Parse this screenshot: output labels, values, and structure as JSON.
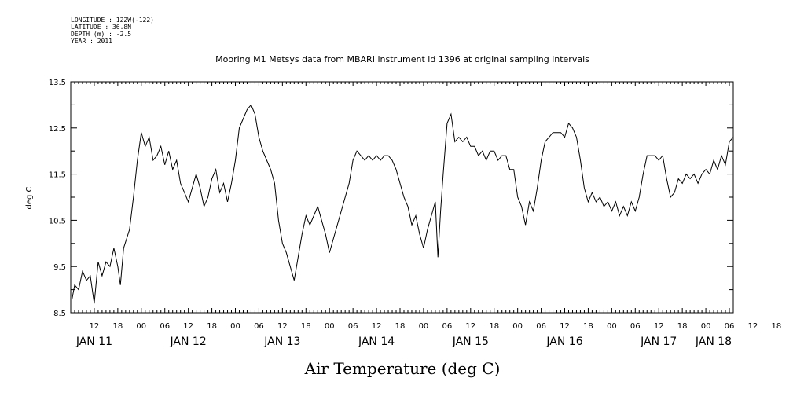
{
  "header": {
    "lines": [
      "LONGITUDE : 122W(-122)",
      "LATITUDE : 36.8N",
      "DEPTH (m) : -2.5",
      "YEAR : 2011"
    ]
  },
  "chart_data": {
    "type": "line",
    "title": "Mooring M1 Metsys data from MBARI instrument id 1396 at original sampling intervals",
    "bottom_title": "Air Temperature (deg C)",
    "ylabel": "deg C",
    "xlabel": "",
    "ylim": [
      8.5,
      13.5
    ],
    "yticks": [
      "8.5",
      "9.5",
      "10.5",
      "11.5",
      "12.5",
      "13.5"
    ],
    "xlim": [
      "2011-01-11T06:00",
      "2011-01-18T07:00"
    ],
    "hour_tick_labels": [
      "12",
      "18",
      "00",
      "06",
      "12",
      "18",
      "00",
      "06",
      "12",
      "18",
      "00",
      "06",
      "12",
      "18",
      "00",
      "06",
      "12",
      "18",
      "00",
      "06",
      "12",
      "18",
      "00",
      "06",
      "12",
      "18",
      "00",
      "06",
      "12",
      "18",
      "00",
      "06"
    ],
    "day_labels": [
      "JAN 11",
      "JAN 12",
      "JAN 13",
      "JAN 14",
      "JAN 15",
      "JAN 16",
      "JAN 17",
      "JAN 18"
    ],
    "grid": false,
    "series": [
      {
        "color": "#000000",
        "points": [
          [
            "2011-01-11T06:20",
            8.8
          ],
          [
            "2011-01-11T07:00",
            9.1
          ],
          [
            "2011-01-11T08:00",
            9.0
          ],
          [
            "2011-01-11T09:00",
            9.4
          ],
          [
            "2011-01-11T10:00",
            9.2
          ],
          [
            "2011-01-11T11:00",
            9.3
          ],
          [
            "2011-01-11T12:00",
            8.7
          ],
          [
            "2011-01-11T13:00",
            9.6
          ],
          [
            "2011-01-11T14:00",
            9.3
          ],
          [
            "2011-01-11T15:00",
            9.6
          ],
          [
            "2011-01-11T16:00",
            9.5
          ],
          [
            "2011-01-11T17:00",
            9.9
          ],
          [
            "2011-01-11T18:00",
            9.5
          ],
          [
            "2011-01-11T18:40",
            9.1
          ],
          [
            "2011-01-11T19:30",
            9.9
          ],
          [
            "2011-01-11T21:00",
            10.3
          ],
          [
            "2011-01-11T22:00",
            11.0
          ],
          [
            "2011-01-11T23:00",
            11.8
          ],
          [
            "2011-01-12T00:00",
            12.4
          ],
          [
            "2011-01-12T01:00",
            12.1
          ],
          [
            "2011-01-12T02:00",
            12.3
          ],
          [
            "2011-01-12T03:00",
            11.8
          ],
          [
            "2011-01-12T04:00",
            11.9
          ],
          [
            "2011-01-12T05:00",
            12.1
          ],
          [
            "2011-01-12T06:00",
            11.7
          ],
          [
            "2011-01-12T07:00",
            12.0
          ],
          [
            "2011-01-12T08:00",
            11.6
          ],
          [
            "2011-01-12T09:00",
            11.8
          ],
          [
            "2011-01-12T10:00",
            11.3
          ],
          [
            "2011-01-12T11:00",
            11.1
          ],
          [
            "2011-01-12T12:00",
            10.9
          ],
          [
            "2011-01-12T13:00",
            11.2
          ],
          [
            "2011-01-12T14:00",
            11.5
          ],
          [
            "2011-01-12T15:00",
            11.2
          ],
          [
            "2011-01-12T16:00",
            10.8
          ],
          [
            "2011-01-12T17:00",
            11.0
          ],
          [
            "2011-01-12T18:00",
            11.4
          ],
          [
            "2011-01-12T19:00",
            11.6
          ],
          [
            "2011-01-12T20:00",
            11.1
          ],
          [
            "2011-01-12T21:00",
            11.3
          ],
          [
            "2011-01-12T22:00",
            10.9
          ],
          [
            "2011-01-12T23:00",
            11.3
          ],
          [
            "2011-01-13T00:00",
            11.8
          ],
          [
            "2011-01-13T01:00",
            12.5
          ],
          [
            "2011-01-13T02:00",
            12.7
          ],
          [
            "2011-01-13T03:00",
            12.9
          ],
          [
            "2011-01-13T04:00",
            13.0
          ],
          [
            "2011-01-13T05:00",
            12.8
          ],
          [
            "2011-01-13T06:00",
            12.3
          ],
          [
            "2011-01-13T07:00",
            12.0
          ],
          [
            "2011-01-13T08:00",
            11.8
          ],
          [
            "2011-01-13T09:00",
            11.6
          ],
          [
            "2011-01-13T10:00",
            11.3
          ],
          [
            "2011-01-13T11:00",
            10.5
          ],
          [
            "2011-01-13T12:00",
            10.0
          ],
          [
            "2011-01-13T13:00",
            9.8
          ],
          [
            "2011-01-13T14:00",
            9.5
          ],
          [
            "2011-01-13T15:00",
            9.2
          ],
          [
            "2011-01-13T16:00",
            9.7
          ],
          [
            "2011-01-13T17:00",
            10.2
          ],
          [
            "2011-01-13T18:00",
            10.6
          ],
          [
            "2011-01-13T19:00",
            10.4
          ],
          [
            "2011-01-13T20:00",
            10.6
          ],
          [
            "2011-01-13T21:00",
            10.8
          ],
          [
            "2011-01-13T22:00",
            10.5
          ],
          [
            "2011-01-13T23:00",
            10.2
          ],
          [
            "2011-01-14T00:00",
            9.8
          ],
          [
            "2011-01-14T01:00",
            10.1
          ],
          [
            "2011-01-14T02:00",
            10.4
          ],
          [
            "2011-01-14T03:00",
            10.7
          ],
          [
            "2011-01-14T04:00",
            11.0
          ],
          [
            "2011-01-14T05:00",
            11.3
          ],
          [
            "2011-01-14T06:00",
            11.8
          ],
          [
            "2011-01-14T07:00",
            12.0
          ],
          [
            "2011-01-14T08:00",
            11.9
          ],
          [
            "2011-01-14T09:00",
            11.8
          ],
          [
            "2011-01-14T10:00",
            11.9
          ],
          [
            "2011-01-14T11:00",
            11.8
          ],
          [
            "2011-01-14T12:00",
            11.9
          ],
          [
            "2011-01-14T13:00",
            11.8
          ],
          [
            "2011-01-14T14:00",
            11.9
          ],
          [
            "2011-01-14T15:00",
            11.9
          ],
          [
            "2011-01-14T16:00",
            11.8
          ],
          [
            "2011-01-14T17:00",
            11.6
          ],
          [
            "2011-01-14T18:00",
            11.3
          ],
          [
            "2011-01-14T19:00",
            11.0
          ],
          [
            "2011-01-14T20:00",
            10.8
          ],
          [
            "2011-01-14T21:00",
            10.4
          ],
          [
            "2011-01-14T22:00",
            10.6
          ],
          [
            "2011-01-14T23:00",
            10.2
          ],
          [
            "2011-01-15T00:00",
            9.9
          ],
          [
            "2011-01-15T01:00",
            10.3
          ],
          [
            "2011-01-15T02:00",
            10.6
          ],
          [
            "2011-01-15T03:00",
            10.9
          ],
          [
            "2011-01-15T03:40",
            9.7
          ],
          [
            "2011-01-15T04:20",
            10.7
          ],
          [
            "2011-01-15T05:00",
            11.5
          ],
          [
            "2011-01-15T06:00",
            12.6
          ],
          [
            "2011-01-15T07:00",
            12.8
          ],
          [
            "2011-01-15T08:00",
            12.2
          ],
          [
            "2011-01-15T09:00",
            12.3
          ],
          [
            "2011-01-15T10:00",
            12.2
          ],
          [
            "2011-01-15T11:00",
            12.3
          ],
          [
            "2011-01-15T12:00",
            12.1
          ],
          [
            "2011-01-15T13:00",
            12.1
          ],
          [
            "2011-01-15T14:00",
            11.9
          ],
          [
            "2011-01-15T15:00",
            12.0
          ],
          [
            "2011-01-15T16:00",
            11.8
          ],
          [
            "2011-01-15T17:00",
            12.0
          ],
          [
            "2011-01-15T18:00",
            12.0
          ],
          [
            "2011-01-15T19:00",
            11.8
          ],
          [
            "2011-01-15T20:00",
            11.9
          ],
          [
            "2011-01-15T21:00",
            11.9
          ],
          [
            "2011-01-15T22:00",
            11.6
          ],
          [
            "2011-01-15T23:00",
            11.6
          ],
          [
            "2011-01-16T00:00",
            11.0
          ],
          [
            "2011-01-16T01:00",
            10.8
          ],
          [
            "2011-01-16T02:00",
            10.4
          ],
          [
            "2011-01-16T03:00",
            10.9
          ],
          [
            "2011-01-16T04:00",
            10.7
          ],
          [
            "2011-01-16T05:00",
            11.2
          ],
          [
            "2011-01-16T06:00",
            11.8
          ],
          [
            "2011-01-16T07:00",
            12.2
          ],
          [
            "2011-01-16T08:00",
            12.3
          ],
          [
            "2011-01-16T09:00",
            12.4
          ],
          [
            "2011-01-16T10:00",
            12.4
          ],
          [
            "2011-01-16T11:00",
            12.4
          ],
          [
            "2011-01-16T12:00",
            12.3
          ],
          [
            "2011-01-16T13:00",
            12.6
          ],
          [
            "2011-01-16T14:00",
            12.5
          ],
          [
            "2011-01-16T15:00",
            12.3
          ],
          [
            "2011-01-16T16:00",
            11.8
          ],
          [
            "2011-01-16T17:00",
            11.2
          ],
          [
            "2011-01-16T18:00",
            10.9
          ],
          [
            "2011-01-16T19:00",
            11.1
          ],
          [
            "2011-01-16T20:00",
            10.9
          ],
          [
            "2011-01-16T21:00",
            11.0
          ],
          [
            "2011-01-16T22:00",
            10.8
          ],
          [
            "2011-01-16T23:00",
            10.9
          ],
          [
            "2011-01-17T00:00",
            10.7
          ],
          [
            "2011-01-17T01:00",
            10.9
          ],
          [
            "2011-01-17T02:00",
            10.6
          ],
          [
            "2011-01-17T03:00",
            10.8
          ],
          [
            "2011-01-17T04:00",
            10.6
          ],
          [
            "2011-01-17T05:00",
            10.9
          ],
          [
            "2011-01-17T06:00",
            10.7
          ],
          [
            "2011-01-17T07:00",
            11.0
          ],
          [
            "2011-01-17T08:00",
            11.5
          ],
          [
            "2011-01-17T09:00",
            11.9
          ],
          [
            "2011-01-17T10:00",
            11.9
          ],
          [
            "2011-01-17T11:00",
            11.9
          ],
          [
            "2011-01-17T12:00",
            11.8
          ],
          [
            "2011-01-17T13:00",
            11.9
          ],
          [
            "2011-01-17T14:00",
            11.4
          ],
          [
            "2011-01-17T15:00",
            11.0
          ],
          [
            "2011-01-17T16:00",
            11.1
          ],
          [
            "2011-01-17T17:00",
            11.4
          ],
          [
            "2011-01-17T18:00",
            11.3
          ],
          [
            "2011-01-17T19:00",
            11.5
          ],
          [
            "2011-01-17T20:00",
            11.4
          ],
          [
            "2011-01-17T21:00",
            11.5
          ],
          [
            "2011-01-17T22:00",
            11.3
          ],
          [
            "2011-01-17T23:00",
            11.5
          ],
          [
            "2011-01-18T00:00",
            11.6
          ],
          [
            "2011-01-18T01:00",
            11.5
          ],
          [
            "2011-01-18T02:00",
            11.8
          ],
          [
            "2011-01-18T03:00",
            11.6
          ],
          [
            "2011-01-18T04:00",
            11.9
          ],
          [
            "2011-01-18T05:00",
            11.7
          ],
          [
            "2011-01-18T06:00",
            12.2
          ],
          [
            "2011-01-18T07:00",
            12.3
          ]
        ]
      }
    ]
  }
}
